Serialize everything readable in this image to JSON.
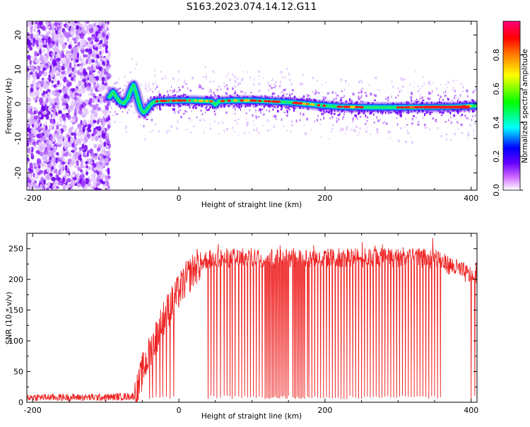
{
  "title": "S163.2023.074.14.12.G11",
  "chart_data": [
    {
      "type": "heatmap",
      "xlabel": "Height of straight line (km)",
      "ylabel": "Frequency (Hz)",
      "xlim": [
        -208,
        408
      ],
      "ylim": [
        -25,
        24
      ],
      "xticks": [
        -200,
        0,
        200,
        400
      ],
      "yticks": [
        -20,
        -10,
        0,
        10,
        20
      ],
      "noise_region_x": [
        -208,
        -95
      ],
      "signal_trace": {
        "x": [
          -95,
          -90,
          -85,
          -80,
          -75,
          -70,
          -66,
          -62,
          -58,
          -55,
          -52,
          -48,
          -45,
          -40,
          -35,
          -30,
          -20,
          0,
          20,
          45,
          50,
          55,
          75,
          100,
          150,
          200,
          220,
          260,
          300,
          350,
          380,
          408
        ],
        "y": [
          2,
          3.5,
          1.8,
          0.5,
          0.2,
          1.5,
          3.8,
          5.5,
          3.0,
          0.5,
          -1.5,
          -2.5,
          -2.0,
          -0.5,
          0.5,
          0.8,
          0.9,
          1.0,
          1.0,
          0.8,
          -0.2,
          0.8,
          1.0,
          1.0,
          0.5,
          -0.5,
          -0.8,
          -1.0,
          -1.0,
          -0.9,
          -0.8,
          -0.5
        ]
      },
      "colorbar": {
        "label": "Normalized spectral amplitude",
        "range": [
          0,
          1
        ],
        "ticks": [
          0.0,
          0.2,
          0.4,
          0.6,
          0.8
        ],
        "tick_labels": [
          "0.0",
          "0.2",
          "0.4",
          "0.6",
          "0.8"
        ],
        "colormap": [
          "#ffffff",
          "#9900ff",
          "#0000ff",
          "#00ffff",
          "#00ff00",
          "#ffff00",
          "#ff0000",
          "#ff007f"
        ]
      }
    },
    {
      "type": "line",
      "xlabel": "Height of straight line (km)",
      "ylabel": "SNR (10 * v/v)",
      "xlim": [
        -208,
        408
      ],
      "ylim": [
        0,
        275
      ],
      "xticks": [
        -200,
        0,
        200,
        400
      ],
      "yticks": [
        0,
        50,
        100,
        150,
        200,
        250
      ],
      "color": "#ee2222",
      "series": [
        {
          "x": [
            -208,
            -150,
            -100,
            -60,
            -55,
            -50,
            -45,
            -40,
            -35,
            -30,
            -25,
            -20,
            -10,
            0,
            10,
            20,
            30,
            40,
            50,
            100,
            150,
            200,
            250,
            300,
            340,
            360,
            380,
            400,
            408
          ],
          "y": [
            8,
            8,
            8,
            10,
            25,
            50,
            65,
            80,
            95,
            110,
            125,
            140,
            160,
            180,
            200,
            215,
            228,
            233,
            235,
            235,
            235,
            235,
            235,
            235,
            234,
            228,
            218,
            205,
            200
          ]
        }
      ],
      "dropouts_x": [
        -40,
        -36,
        -31,
        -26,
        -22,
        -17,
        -12,
        -7,
        40,
        44,
        48,
        52,
        57,
        62,
        66,
        70,
        73,
        77,
        82,
        86,
        90,
        94,
        98,
        102,
        106,
        110,
        114,
        118,
        120,
        122,
        124,
        126,
        128,
        130,
        132,
        134,
        136,
        138,
        140,
        142,
        144,
        146,
        148,
        150,
        156,
        158,
        160,
        162,
        164,
        166,
        168,
        170,
        172,
        176,
        178,
        182,
        186,
        190,
        194,
        198,
        202,
        206,
        210,
        214,
        218,
        222,
        226,
        230,
        234,
        238,
        242,
        246,
        250,
        254,
        258,
        262,
        266,
        270,
        274,
        278,
        282,
        286,
        290,
        294,
        298,
        302,
        306,
        310,
        314,
        318,
        322,
        326,
        330,
        334,
        338,
        342,
        346,
        350,
        354,
        358,
        400,
        405
      ]
    }
  ]
}
